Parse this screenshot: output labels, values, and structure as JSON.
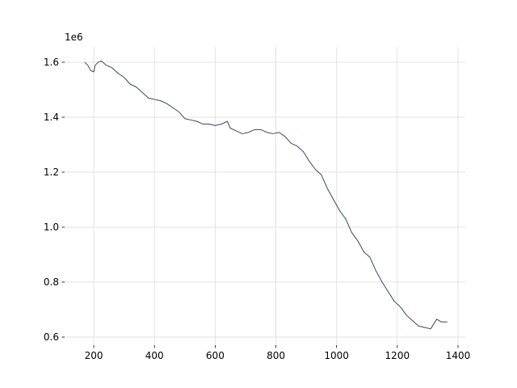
{
  "chart_data": {
    "type": "line",
    "x": [
      170,
      180,
      190,
      200,
      205,
      215,
      225,
      240,
      260,
      280,
      300,
      320,
      340,
      360,
      380,
      400,
      420,
      440,
      460,
      480,
      500,
      520,
      540,
      560,
      580,
      600,
      620,
      640,
      650,
      670,
      690,
      710,
      730,
      750,
      770,
      790,
      810,
      830,
      850,
      870,
      890,
      910,
      930,
      950,
      970,
      990,
      1010,
      1030,
      1050,
      1070,
      1090,
      1110,
      1130,
      1150,
      1170,
      1190,
      1210,
      1230,
      1250,
      1270,
      1290,
      1310,
      1330,
      1345,
      1365
    ],
    "series": [
      {
        "color": "#34495e",
        "values": [
          1600000,
          1590000,
          1570000,
          1565000,
          1590000,
          1600000,
          1605000,
          1590000,
          1580000,
          1560000,
          1545000,
          1520000,
          1510000,
          1490000,
          1470000,
          1465000,
          1460000,
          1450000,
          1435000,
          1420000,
          1395000,
          1390000,
          1385000,
          1375000,
          1375000,
          1370000,
          1375000,
          1385000,
          1360000,
          1350000,
          1340000,
          1345000,
          1355000,
          1355000,
          1345000,
          1340000,
          1345000,
          1330000,
          1305000,
          1295000,
          1275000,
          1240000,
          1210000,
          1190000,
          1140000,
          1100000,
          1060000,
          1030000,
          980000,
          950000,
          910000,
          890000,
          840000,
          800000,
          765000,
          730000,
          710000,
          680000,
          660000,
          640000,
          635000,
          630000,
          665000,
          655000,
          655000
        ]
      }
    ],
    "xlim": [
      104,
      1424
    ],
    "xticks": [
      200,
      400,
      600,
      800,
      1000,
      1200,
      1400
    ],
    "ylim": [
      570600,
      1656000
    ],
    "yticks": [
      {
        "value": 600000,
        "label": "0.6"
      },
      {
        "value": 800000,
        "label": "0.8"
      },
      {
        "value": 1000000,
        "label": "1.0"
      },
      {
        "value": 1200000,
        "label": "1.2"
      },
      {
        "value": 1400000,
        "label": "1.4"
      },
      {
        "value": 1600000,
        "label": "1.6"
      }
    ],
    "y_offset_label": "1e6",
    "grid": true
  }
}
